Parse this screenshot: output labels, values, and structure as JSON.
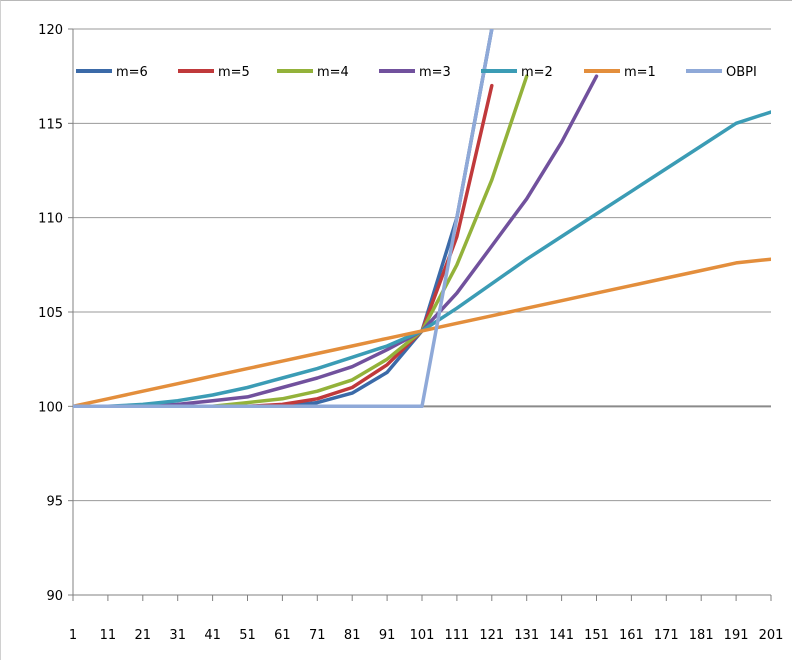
{
  "chart_data": {
    "type": "line",
    "title": "",
    "xlabel": "",
    "ylabel": "",
    "ylim": [
      90,
      120
    ],
    "yticks": [
      90,
      95,
      100,
      105,
      110,
      115,
      120
    ],
    "xlim": [
      1,
      201
    ],
    "xtick_labels": [
      "1",
      "11",
      "21",
      "31",
      "41",
      "51",
      "61",
      "71",
      "81",
      "91",
      "101",
      "111",
      "121",
      "131",
      "141",
      "151",
      "161",
      "171",
      "181",
      "191",
      "201"
    ],
    "grid": "horizontal",
    "legend": "top",
    "x": [
      1,
      11,
      21,
      31,
      41,
      51,
      61,
      71,
      81,
      91,
      101,
      111,
      121,
      131,
      141,
      151,
      161,
      171,
      181,
      191,
      201
    ],
    "series": [
      {
        "name": "m=6",
        "color": "#3b6aa8",
        "values": [
          100,
          100,
          100,
          100,
          100,
          100,
          100,
          100.2,
          100.7,
          101.8,
          104,
          110,
          120,
          null,
          null,
          null,
          null,
          null,
          null,
          null,
          null
        ]
      },
      {
        "name": "m=5",
        "color": "#c0393b",
        "values": [
          100,
          100,
          100,
          100,
          100,
          100,
          100.1,
          100.4,
          101,
          102.2,
          104,
          109,
          117,
          null,
          null,
          null,
          null,
          null,
          null,
          null,
          null
        ]
      },
      {
        "name": "m=4",
        "color": "#93b23a",
        "values": [
          100,
          100,
          100,
          100,
          100,
          100.2,
          100.4,
          100.8,
          101.4,
          102.5,
          104,
          107.5,
          112,
          117.5,
          null,
          null,
          null,
          null,
          null,
          null,
          null
        ]
      },
      {
        "name": "m=3",
        "color": "#71519d",
        "values": [
          100,
          100,
          100,
          100.1,
          100.3,
          100.5,
          101,
          101.5,
          102.1,
          103,
          104,
          106,
          108.5,
          111,
          114,
          117.5,
          null,
          null,
          null,
          null,
          null
        ]
      },
      {
        "name": "m=2",
        "color": "#3b9cb5",
        "values": [
          100,
          100,
          100.1,
          100.3,
          100.6,
          101,
          101.5,
          102,
          102.6,
          103.2,
          104,
          105.2,
          106.5,
          107.8,
          109,
          110.2,
          111.4,
          112.6,
          113.8,
          115,
          115.6
        ]
      },
      {
        "name": "m=1",
        "color": "#e38e3c",
        "values": [
          100,
          100.4,
          100.8,
          101.2,
          101.6,
          102,
          102.4,
          102.8,
          103.2,
          103.6,
          104,
          104.4,
          104.8,
          105.2,
          105.6,
          106,
          106.4,
          106.8,
          107.2,
          107.6,
          107.8
        ]
      },
      {
        "name": "OBPI",
        "color": "#8fa9d8",
        "values": [
          100,
          100,
          100,
          100,
          100,
          100,
          100,
          100,
          100,
          100,
          100,
          110,
          120,
          null,
          null,
          null,
          null,
          null,
          null,
          null,
          null
        ]
      }
    ]
  }
}
